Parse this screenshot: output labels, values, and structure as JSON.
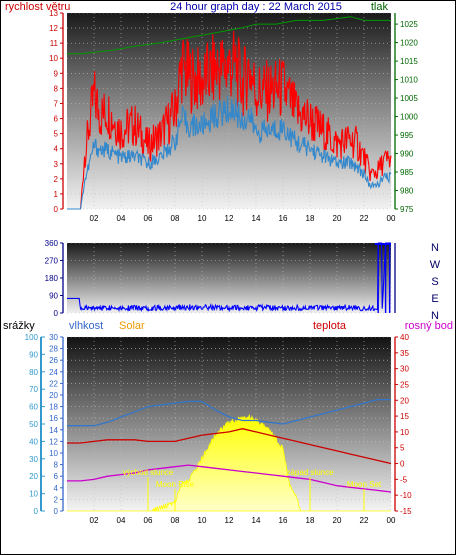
{
  "title": "24 hour graph day : 22 March 2015",
  "chart_data": [
    {
      "id": "wind-pressure",
      "type": "line",
      "labels": {
        "left": "rychlost větru",
        "right": "tlak"
      },
      "left_axis": {
        "min": 0,
        "max": 13,
        "ticks": [
          0,
          1,
          2,
          3,
          4,
          5,
          6,
          7,
          8,
          9,
          10,
          11,
          12,
          13
        ],
        "color": "#cc0000"
      },
      "right_axis": {
        "min": 975,
        "max": 1028,
        "ticks": [
          975,
          980,
          985,
          990,
          995,
          1000,
          1005,
          1010,
          1015,
          1020,
          1025
        ],
        "color": "#006600"
      },
      "x_ticks": [
        "02",
        "04",
        "06",
        "08",
        "10",
        "12",
        "14",
        "16",
        "18",
        "20",
        "22",
        "00"
      ],
      "series": [
        {
          "key": "gust",
          "color": "#ff0000",
          "axis": "left",
          "x": [
            0,
            0.9,
            1.0,
            1.3,
            2.0,
            2.5,
            3.0,
            4.0,
            5.0,
            6.0,
            7.0,
            8.0,
            8.5,
            9.0,
            10.0,
            11.0,
            12.0,
            12.5,
            13.0,
            13.5,
            14.0,
            15.0,
            16.0,
            17.0,
            18.0,
            19.0,
            20.0,
            21.0,
            21.5,
            22.0,
            22.5,
            23.0,
            23.5,
            24.0
          ],
          "y": [
            0,
            0,
            0,
            3.5,
            7.5,
            6.2,
            6.5,
            5.2,
            5.6,
            4.2,
            5.0,
            6.5,
            9.5,
            8.8,
            8.4,
            9.3,
            9.5,
            9.5,
            8.2,
            9.4,
            7.8,
            7.8,
            8.0,
            6.4,
            5.9,
            5.1,
            4.3,
            4.6,
            4.3,
            3.4,
            2.3,
            2.5,
            3.2,
            3.2
          ]
        },
        {
          "key": "avg",
          "color": "#3388cc",
          "axis": "left",
          "x": [
            0,
            0.9,
            1.0,
            1.3,
            2.0,
            2.5,
            3.0,
            4.0,
            5.0,
            6.0,
            7.0,
            8.0,
            8.5,
            9.0,
            10.0,
            11.0,
            12.0,
            12.5,
            13.0,
            13.5,
            14.0,
            15.0,
            16.0,
            17.0,
            18.0,
            19.0,
            20.0,
            21.0,
            21.5,
            22.0,
            22.5,
            23.0,
            23.5,
            24.0
          ],
          "y": [
            0,
            0,
            0,
            1.8,
            4.2,
            3.9,
            3.9,
            3.4,
            3.5,
            3.0,
            3.5,
            4.5,
            6.0,
            5.5,
            5.5,
            6.2,
            6.6,
            6.5,
            5.8,
            6.2,
            5.1,
            5.2,
            5.4,
            4.4,
            4.0,
            3.5,
            3.0,
            3.1,
            2.8,
            2.3,
            1.5,
            1.6,
            2.1,
            2.1
          ]
        },
        {
          "key": "pressure",
          "color": "#009900",
          "axis": "right",
          "x": [
            0,
            1.0,
            1.01,
            3.5,
            5.0,
            7.0,
            8.5,
            10.0,
            11.5,
            13.0,
            14.0,
            15.5,
            17.0,
            19.0,
            21.0,
            22.0,
            22.5,
            23.0,
            24.0
          ],
          "y": [
            1017,
            1017,
            1017,
            1018,
            1019,
            1020,
            1021,
            1022,
            1023,
            1024,
            1025,
            1025,
            1026,
            1026,
            1027,
            1026,
            1026,
            1026,
            1026
          ]
        }
      ]
    },
    {
      "id": "wind-direction",
      "type": "line",
      "left_axis": {
        "min": 0,
        "max": 360,
        "ticks": [
          0,
          90,
          180,
          270,
          360
        ]
      },
      "right_labels": [
        "N",
        "W",
        "S",
        "E",
        "N"
      ],
      "series": [
        {
          "key": "direction",
          "color": "#0000ff",
          "x": [
            0,
            0.9,
            1.0,
            3.0,
            6.0,
            9.0,
            12.0,
            15.0,
            18.0,
            21.0,
            22.8,
            23.0,
            23.05,
            23.3,
            23.35,
            23.6,
            23.65,
            24.0
          ],
          "y": [
            75,
            75,
            22,
            28,
            26,
            30,
            27,
            28,
            25,
            27,
            22,
            30,
            360,
            360,
            20,
            360,
            360,
            360
          ]
        }
      ]
    },
    {
      "id": "temp-humidity-solar",
      "type": "line",
      "labels": {
        "rain": "srážky",
        "humidity": "vlhkost",
        "solar": "Solar",
        "temp": "teplota",
        "dew": "rosný bod"
      },
      "rain_axis": {
        "min": 0,
        "max": 100,
        "ticks": [
          0,
          10,
          20,
          30,
          40,
          50,
          60,
          70,
          80,
          90,
          100
        ],
        "color": "#3399cc"
      },
      "humidity_axis": {
        "min": 0,
        "max": 30,
        "ticks": [
          0,
          2,
          4,
          6,
          8,
          10,
          12,
          14,
          16,
          18,
          20,
          22,
          24,
          26,
          28,
          30
        ],
        "color": "#3366cc"
      },
      "temp_axis": {
        "min": -15,
        "max": 40,
        "ticks": [
          -15,
          -10,
          -5,
          0,
          5,
          10,
          15,
          20,
          25,
          30,
          35,
          40
        ],
        "color": "#cc0000"
      },
      "annotations": [
        {
          "text": "východ slunce",
          "hour": 6.0
        },
        {
          "text": "Moon Rise",
          "hour": 8.0
        },
        {
          "text": "západ slunce",
          "hour": 18.0
        },
        {
          "text": "Moon Set",
          "hour": 22.0
        }
      ],
      "series": [
        {
          "key": "humidity",
          "color": "#3377cc",
          "axis": "rain",
          "x": [
            0,
            1,
            2,
            3,
            4,
            5,
            6,
            7,
            8,
            9,
            10,
            11,
            12,
            13,
            14,
            15,
            16,
            17,
            18,
            19,
            20,
            21,
            22,
            23,
            24
          ],
          "y": [
            49,
            49,
            49,
            51,
            54,
            57,
            60,
            61,
            62,
            63,
            63,
            58,
            54,
            52,
            52,
            51,
            50,
            52,
            54,
            56,
            58,
            60,
            62,
            64,
            64
          ]
        },
        {
          "key": "temperature",
          "color": "#cc0000",
          "axis": "temp",
          "x": [
            0,
            1,
            2,
            3,
            4,
            5,
            6,
            7,
            8,
            9,
            10,
            11,
            12,
            13,
            14,
            15,
            16,
            17,
            18,
            19,
            20,
            21,
            22,
            23,
            24
          ],
          "y": [
            6.5,
            6.5,
            7,
            7.5,
            7.5,
            7.5,
            7,
            7,
            7,
            8,
            9,
            9.5,
            10,
            11,
            10,
            9,
            8,
            7,
            6,
            5,
            4,
            3,
            2,
            1,
            0
          ]
        },
        {
          "key": "dewpoint",
          "color": "#cc00cc",
          "axis": "temp",
          "x": [
            0,
            1,
            2,
            3,
            4,
            5,
            6,
            7,
            8,
            9,
            10,
            11,
            12,
            13,
            14,
            15,
            16,
            17,
            18,
            19,
            20,
            21,
            22,
            23,
            24
          ],
          "y": [
            -5.5,
            -5.5,
            -5,
            -4,
            -3.5,
            -3,
            -2,
            -1.5,
            -1,
            -0.5,
            -1,
            -1.5,
            -2,
            -2.5,
            -3,
            -3.5,
            -4,
            -4.5,
            -5,
            -6,
            -7,
            -7.5,
            -8,
            -8.5,
            -9
          ]
        },
        {
          "key": "solar",
          "color": "#ffff00",
          "axis": "rain",
          "x": [
            0,
            6.3,
            7,
            8,
            8.5,
            9,
            10,
            11,
            12,
            13,
            13.5,
            14,
            15,
            16,
            16.5,
            17,
            17.3,
            24
          ],
          "y": [
            0,
            0,
            2,
            5,
            16,
            17,
            30,
            44,
            51,
            53,
            54,
            52,
            46,
            36,
            15,
            8,
            0,
            0
          ]
        }
      ]
    }
  ]
}
